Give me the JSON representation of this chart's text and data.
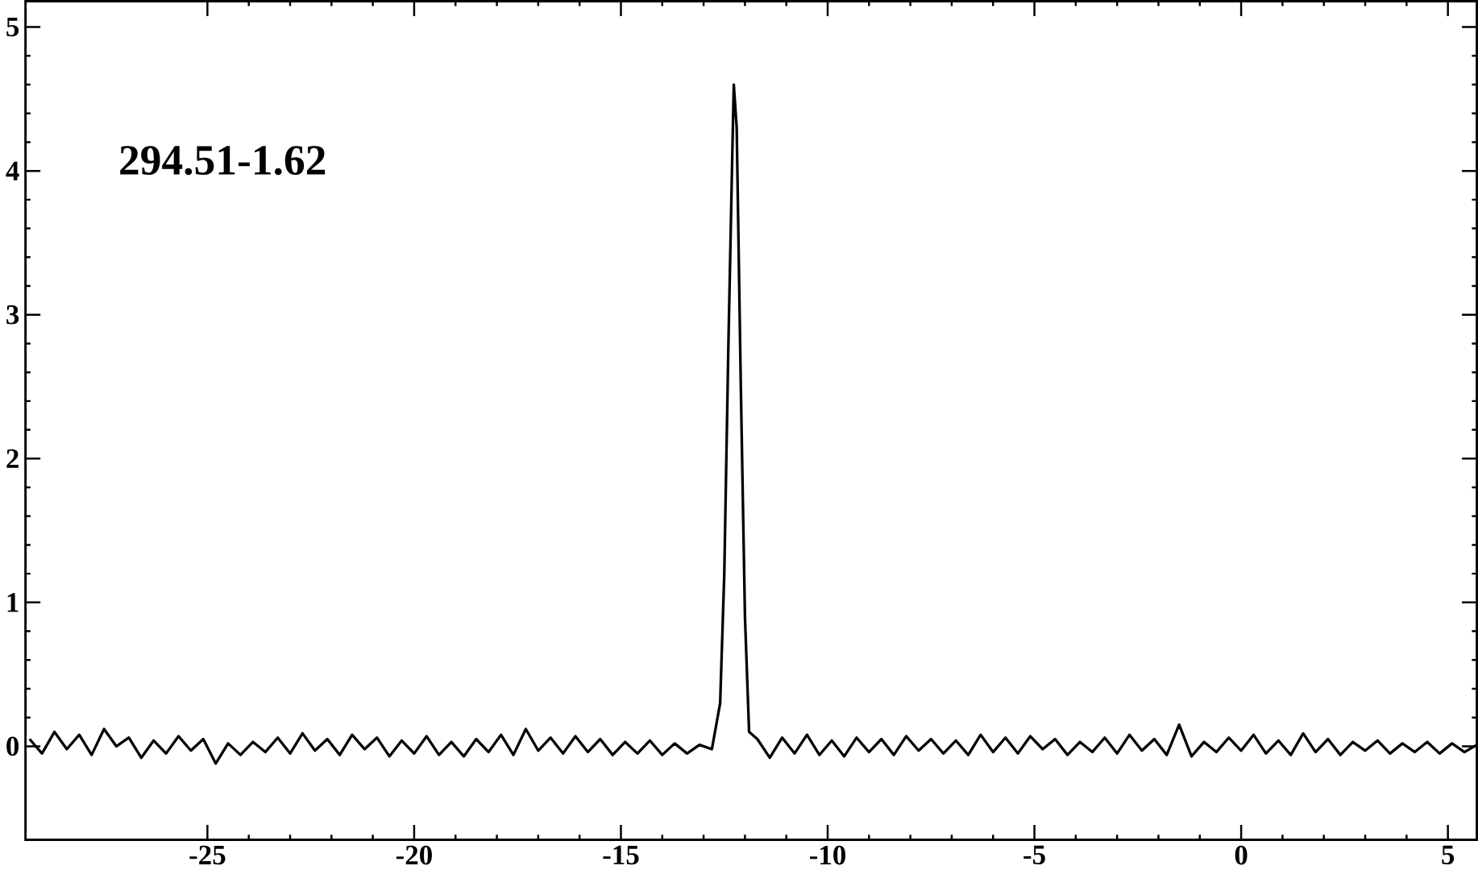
{
  "chart_data": {
    "type": "line",
    "annotations": [
      "294.51-1.62"
    ],
    "color": "#000000",
    "x": [
      -29.3,
      -29.0,
      -28.7,
      -28.4,
      -28.1,
      -27.8,
      -27.5,
      -27.2,
      -26.9,
      -26.6,
      -26.3,
      -26.0,
      -25.7,
      -25.4,
      -25.1,
      -24.8,
      -24.5,
      -24.2,
      -23.9,
      -23.6,
      -23.3,
      -23.0,
      -22.7,
      -22.4,
      -22.1,
      -21.8,
      -21.5,
      -21.2,
      -20.9,
      -20.6,
      -20.3,
      -20.0,
      -19.7,
      -19.4,
      -19.1,
      -18.8,
      -18.5,
      -18.2,
      -17.9,
      -17.6,
      -17.3,
      -17.0,
      -16.7,
      -16.4,
      -16.1,
      -15.8,
      -15.5,
      -15.2,
      -14.9,
      -14.6,
      -14.3,
      -14.0,
      -13.7,
      -13.4,
      -13.1,
      -12.8,
      -12.6,
      -12.5,
      -12.4,
      -12.3,
      -12.27,
      -12.2,
      -12.1,
      -12.0,
      -11.9,
      -11.7,
      -11.4,
      -11.1,
      -10.8,
      -10.5,
      -10.2,
      -9.9,
      -9.6,
      -9.3,
      -9.0,
      -8.7,
      -8.4,
      -8.1,
      -7.8,
      -7.5,
      -7.2,
      -6.9,
      -6.6,
      -6.3,
      -6.0,
      -5.7,
      -5.4,
      -5.1,
      -4.8,
      -4.5,
      -4.2,
      -3.9,
      -3.6,
      -3.3,
      -3.0,
      -2.7,
      -2.4,
      -2.1,
      -1.8,
      -1.5,
      -1.2,
      -0.9,
      -0.6,
      -0.3,
      0.0,
      0.3,
      0.6,
      0.9,
      1.2,
      1.5,
      1.8,
      2.1,
      2.4,
      2.7,
      3.0,
      3.3,
      3.6,
      3.9,
      4.2,
      4.5,
      4.8,
      5.1,
      5.4,
      5.7
    ],
    "values": [
      0.05,
      -0.05,
      0.1,
      -0.02,
      0.08,
      -0.06,
      0.12,
      0.0,
      0.06,
      -0.08,
      0.04,
      -0.05,
      0.07,
      -0.03,
      0.05,
      -0.12,
      0.02,
      -0.06,
      0.03,
      -0.04,
      0.06,
      -0.05,
      0.09,
      -0.03,
      0.05,
      -0.06,
      0.08,
      -0.02,
      0.06,
      -0.07,
      0.04,
      -0.05,
      0.07,
      -0.06,
      0.03,
      -0.07,
      0.05,
      -0.04,
      0.08,
      -0.06,
      0.12,
      -0.03,
      0.06,
      -0.05,
      0.07,
      -0.04,
      0.05,
      -0.06,
      0.03,
      -0.05,
      0.04,
      -0.06,
      0.02,
      -0.05,
      0.01,
      -0.02,
      0.3,
      1.2,
      2.8,
      4.2,
      4.6,
      4.3,
      2.5,
      0.9,
      0.1,
      0.05,
      -0.08,
      0.06,
      -0.05,
      0.08,
      -0.06,
      0.04,
      -0.07,
      0.06,
      -0.04,
      0.05,
      -0.06,
      0.07,
      -0.03,
      0.05,
      -0.05,
      0.04,
      -0.06,
      0.08,
      -0.04,
      0.06,
      -0.05,
      0.07,
      -0.02,
      0.05,
      -0.06,
      0.03,
      -0.04,
      0.06,
      -0.05,
      0.08,
      -0.03,
      0.05,
      -0.06,
      0.15,
      -0.07,
      0.03,
      -0.04,
      0.06,
      -0.03,
      0.08,
      -0.05,
      0.04,
      -0.06,
      0.09,
      -0.04,
      0.05,
      -0.06,
      0.03,
      -0.03,
      0.04,
      -0.05,
      0.02,
      -0.04,
      0.03,
      -0.05,
      0.02,
      -0.04,
      0.01
    ],
    "xlim": [
      -29.4,
      5.7
    ],
    "ylim": [
      -0.65,
      5.18
    ],
    "xticks": [
      -25,
      -20,
      -15,
      -10,
      -5,
      0,
      5
    ],
    "yticks": [
      0,
      1,
      2,
      3,
      4,
      5
    ],
    "grid": false,
    "marker": "none",
    "line_style": "solid"
  }
}
